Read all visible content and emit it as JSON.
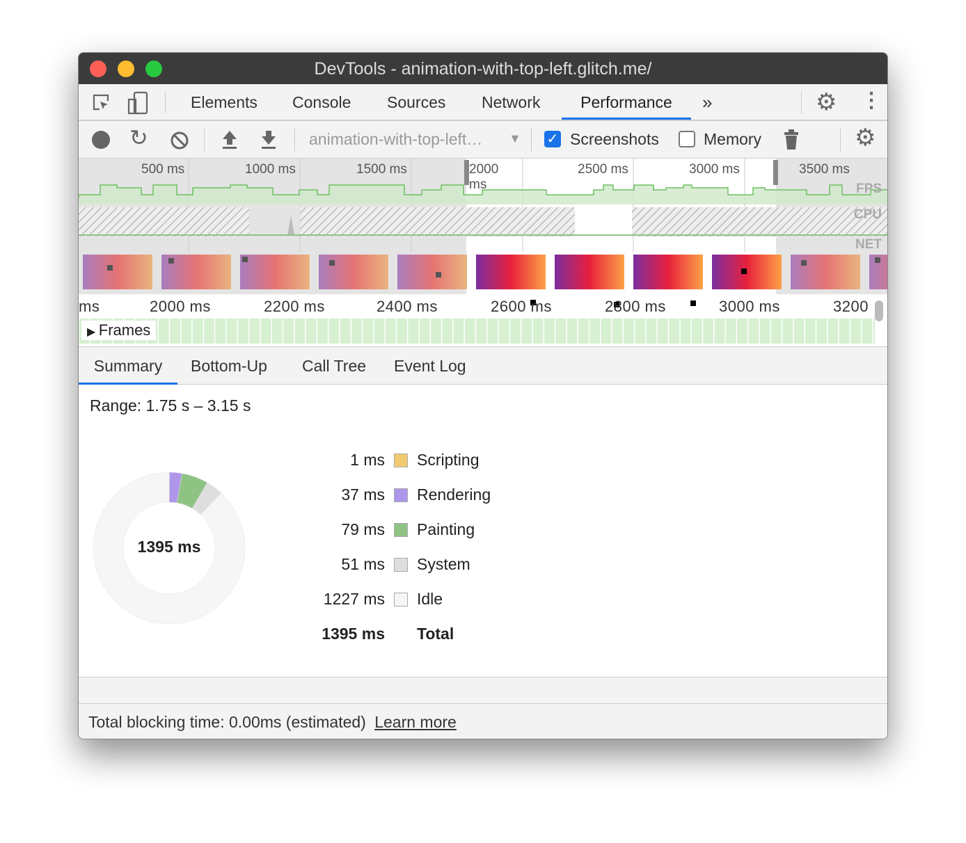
{
  "window": {
    "title": "DevTools - animation-with-top-left.glitch.me/"
  },
  "tabs": [
    {
      "label": "Elements"
    },
    {
      "label": "Console"
    },
    {
      "label": "Sources"
    },
    {
      "label": "Network"
    },
    {
      "label": "Performance",
      "active": true
    }
  ],
  "tabs_more": "»",
  "toolbar": {
    "recording_select": "animation-with-top-left…",
    "screenshots_label": "Screenshots",
    "screenshots_checked": true,
    "memory_label": "Memory",
    "memory_checked": false
  },
  "overview": {
    "ticks": [
      "500 ms",
      "1000 ms",
      "1500 ms",
      "2000 ms",
      "2500 ms",
      "3000 ms",
      "3500 ms"
    ],
    "tracks": [
      "FPS",
      "CPU",
      "NET"
    ]
  },
  "ruler": {
    "ticks": [
      "ms",
      "2000 ms",
      "2200 ms",
      "2400 ms",
      "2600 ms",
      "2800 ms",
      "3000 ms",
      "3200"
    ]
  },
  "frames_label": "Frames",
  "lower_tabs": [
    {
      "label": "Summary",
      "active": true
    },
    {
      "label": "Bottom-Up"
    },
    {
      "label": "Call Tree"
    },
    {
      "label": "Event Log"
    }
  ],
  "summary": {
    "range": "Range: 1.75 s – 3.15 s",
    "total_center": "1395 ms",
    "items": [
      {
        "value": "1 ms",
        "ms": 1,
        "label": "Scripting",
        "color": "#f2ca72"
      },
      {
        "value": "37 ms",
        "ms": 37,
        "label": "Rendering",
        "color": "#ae96ea"
      },
      {
        "value": "79 ms",
        "ms": 79,
        "label": "Painting",
        "color": "#8fc384"
      },
      {
        "value": "51 ms",
        "ms": 51,
        "label": "System",
        "color": "#dedede"
      },
      {
        "value": "1227 ms",
        "ms": 1227,
        "label": "Idle",
        "color": "#f6f6f6"
      }
    ],
    "total_value": "1395 ms",
    "total_label": "Total"
  },
  "footer": {
    "text": "Total blocking time: 0.00ms (estimated)",
    "link": "Learn more"
  }
}
